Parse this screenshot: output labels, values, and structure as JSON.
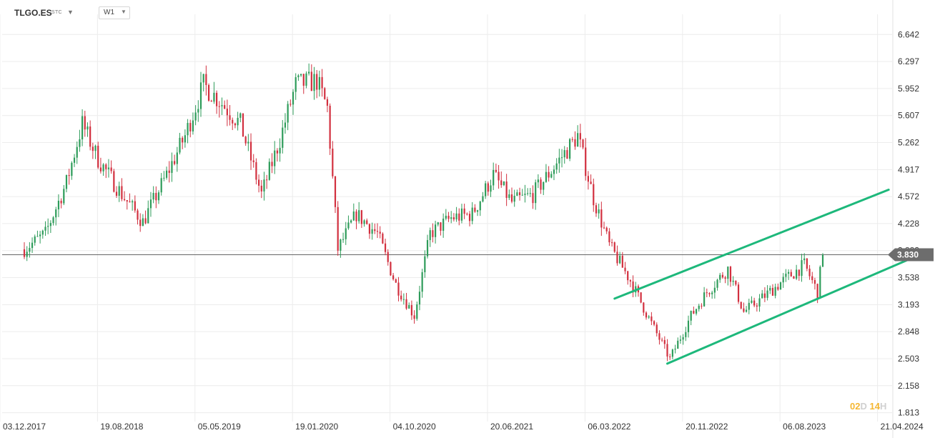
{
  "toolbar": {
    "symbol": "TLGO.ES",
    "symbol_type": "STC",
    "timeframe": "W1"
  },
  "countdown": {
    "d_value": "02",
    "d_unit": "D",
    "h_value": "14",
    "h_unit": "H"
  },
  "colors": {
    "up": "#2e9c5a",
    "down": "#d2303f",
    "channel": "#1db87b",
    "current": "#666666"
  },
  "chart_data": {
    "type": "candlestick",
    "title": "",
    "xlabel": "",
    "ylabel": "",
    "ylim": [
      1.7,
      6.9
    ],
    "y_ticks": [
      6.642,
      6.297,
      5.952,
      5.607,
      5.262,
      4.917,
      4.572,
      4.228,
      3.883,
      3.538,
      3.193,
      2.848,
      2.503,
      2.158,
      1.813
    ],
    "y_tick_labels": [
      "6.642",
      "6.297",
      "5.952",
      "5.607",
      "5.262",
      "4.917",
      "4.572",
      "4.228",
      "3.883",
      "3.538",
      "3.193",
      "2.848",
      "2.503",
      "2.158",
      "1.813"
    ],
    "x_ticks": [
      "03.12.2017",
      "19.08.2018",
      "05.05.2019",
      "19.01.2020",
      "04.10.2020",
      "20.06.2021",
      "06.03.2022",
      "20.11.2022",
      "06.08.2023",
      "21.04.2024"
    ],
    "grid": true,
    "current_price": 3.83,
    "current_price_label": "3.830",
    "close_path": [
      [
        "03.12.2017",
        3.9
      ],
      [
        "28.01.2018",
        4.1
      ],
      [
        "25.03.2018",
        4.75
      ],
      [
        "06.05.2018",
        5.5
      ],
      [
        "17.06.2018",
        5.05
      ],
      [
        "19.08.2018",
        4.6
      ],
      [
        "14.10.2018",
        4.25
      ],
      [
        "16.12.2018",
        4.85
      ],
      [
        "03.02.2019",
        5.35
      ],
      [
        "24.03.2019",
        6.0
      ],
      [
        "05.05.2019",
        5.8
      ],
      [
        "30.06.2019",
        5.5
      ],
      [
        "25.08.2019",
        4.6
      ],
      [
        "13.10.2019",
        5.3
      ],
      [
        "24.11.2019",
        6.0
      ],
      [
        "19.01.2020",
        6.05
      ],
      [
        "16.02.2020",
        5.7
      ],
      [
        "15.03.2020",
        3.9
      ],
      [
        "03.05.2020",
        4.35
      ],
      [
        "28.06.2020",
        4.1
      ],
      [
        "16.08.2020",
        3.45
      ],
      [
        "04.10.2020",
        3.05
      ],
      [
        "15.11.2020",
        4.1
      ],
      [
        "10.01.2021",
        4.3
      ],
      [
        "07.03.2021",
        4.35
      ],
      [
        "02.05.2021",
        4.85
      ],
      [
        "20.06.2021",
        4.5
      ],
      [
        "15.08.2021",
        4.6
      ],
      [
        "10.10.2021",
        4.95
      ],
      [
        "12.12.2021",
        5.35
      ],
      [
        "23.01.2022",
        4.55
      ],
      [
        "06.03.2022",
        3.95
      ],
      [
        "01.05.2022",
        3.5
      ],
      [
        "26.06.2022",
        2.95
      ],
      [
        "14.08.2022",
        2.5
      ],
      [
        "09.10.2022",
        3.05
      ],
      [
        "20.11.2022",
        3.35
      ],
      [
        "15.01.2023",
        3.65
      ],
      [
        "26.02.2023",
        3.1
      ],
      [
        "09.04.2023",
        3.25
      ],
      [
        "11.06.2023",
        3.5
      ],
      [
        "06.08.2023",
        3.7
      ],
      [
        "10.09.2023",
        3.35
      ],
      [
        "24.09.2023",
        3.83
      ]
    ],
    "channel_lines": [
      {
        "name": "",
        "from": [
          "20.03.2022",
          3.27
        ],
        "to": [
          "17.03.2024",
          4.66
        ]
      },
      {
        "name": "",
        "from": [
          "07.08.2022",
          2.44
        ],
        "to": [
          "19.05.2024",
          3.79
        ]
      }
    ]
  }
}
